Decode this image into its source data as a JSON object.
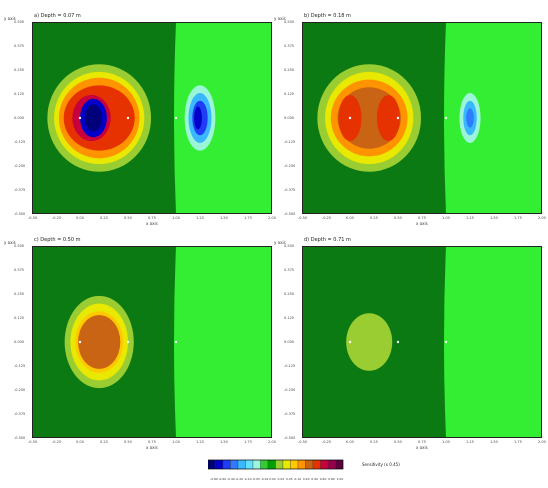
{
  "chart_data": [
    {
      "type": "heatmap",
      "title": "a) Depth = 0.07 m",
      "xlabel": "x axis",
      "ylabel": "y axis",
      "xlim": [
        -0.5,
        2.0
      ],
      "ylim": [
        -0.5,
        0.5
      ],
      "xticks": [
        "-0.50",
        "-0.25",
        "0.00",
        "0.25",
        "0.50",
        "0.75",
        "1.00",
        "1.25",
        "1.50",
        "1.75",
        "2.00"
      ],
      "yticks": [
        "0.500",
        "0.375",
        "0.250",
        "0.125",
        "0.000",
        "-0.125",
        "-0.250",
        "-0.375",
        "-0.500"
      ],
      "electrodes": [
        [
          0.0,
          0.0
        ],
        [
          0.25,
          0.0
        ],
        [
          0.5,
          0.0
        ],
        [
          1.0,
          0.0
        ]
      ],
      "anomaly": {
        "center": [
          0.15,
          0.0
        ],
        "positive_peak": "center_blue",
        "negative_lobe_x": 1.25
      }
    },
    {
      "type": "heatmap",
      "title": "b) Depth = 0.18 m",
      "xlabel": "x axis",
      "ylabel": "y axis",
      "xlim": [
        -0.5,
        2.0
      ],
      "ylim": [
        -0.5,
        0.5
      ],
      "xticks": [
        "-0.50",
        "-0.25",
        "0.00",
        "0.25",
        "0.50",
        "0.75",
        "1.00",
        "1.25",
        "1.50",
        "1.75",
        "2.00"
      ],
      "yticks": [
        "0.500",
        "0.375",
        "0.250",
        "0.125",
        "0.000",
        "-0.125",
        "-0.250",
        "-0.375",
        "-0.500"
      ]
    },
    {
      "type": "heatmap",
      "title": "c) Depth = 0.50 m",
      "xlabel": "x axis",
      "ylabel": "y axis",
      "xlim": [
        -0.5,
        2.0
      ],
      "ylim": [
        -0.5,
        0.5
      ],
      "xticks": [
        "-0.50",
        "-0.25",
        "0.00",
        "0.25",
        "0.50",
        "0.75",
        "1.00",
        "1.25",
        "1.50",
        "1.75",
        "2.00"
      ],
      "yticks": [
        "0.500",
        "0.375",
        "0.250",
        "0.125",
        "0.000",
        "-0.125",
        "-0.250",
        "-0.375",
        "-0.500"
      ]
    },
    {
      "type": "heatmap",
      "title": "d) Depth = 0.71 m",
      "xlabel": "x axis",
      "ylabel": "y axis",
      "xlim": [
        -0.5,
        2.0
      ],
      "ylim": [
        -0.5,
        0.5
      ],
      "xticks": [
        "-0.50",
        "-0.25",
        "0.00",
        "0.25",
        "0.50",
        "0.75",
        "1.00",
        "1.25",
        "1.50",
        "1.75",
        "2.00"
      ],
      "yticks": [
        "0.500",
        "0.375",
        "0.250",
        "0.125",
        "0.000",
        "-0.125",
        "-0.250",
        "-0.375",
        "-0.500"
      ]
    }
  ],
  "legend": {
    "label": "Sensitivity (x 0.45)",
    "colors": [
      "#00007a",
      "#0000c8",
      "#1f3df5",
      "#2e7bff",
      "#39b8ff",
      "#62e0ff",
      "#9bf5d8",
      "#33cc33",
      "#00a000",
      "#9acd32",
      "#e8e800",
      "#ffc800",
      "#ff9400",
      "#c86414",
      "#e63200",
      "#c8003c",
      "#96004b",
      "#5a003c"
    ],
    "ticks": [
      "-0.80",
      "-0.60",
      "-0.40",
      "-0.20",
      "-0.10",
      "-0.05",
      "-0.02",
      "0.00",
      "0.02",
      "0.05",
      "0.10",
      "0.20",
      "0.40",
      "0.60",
      "0.80",
      "1.00"
    ]
  },
  "colors": {
    "dark_green": "#0b7a12",
    "light_green": "#33ee33",
    "frame": "#222222"
  }
}
